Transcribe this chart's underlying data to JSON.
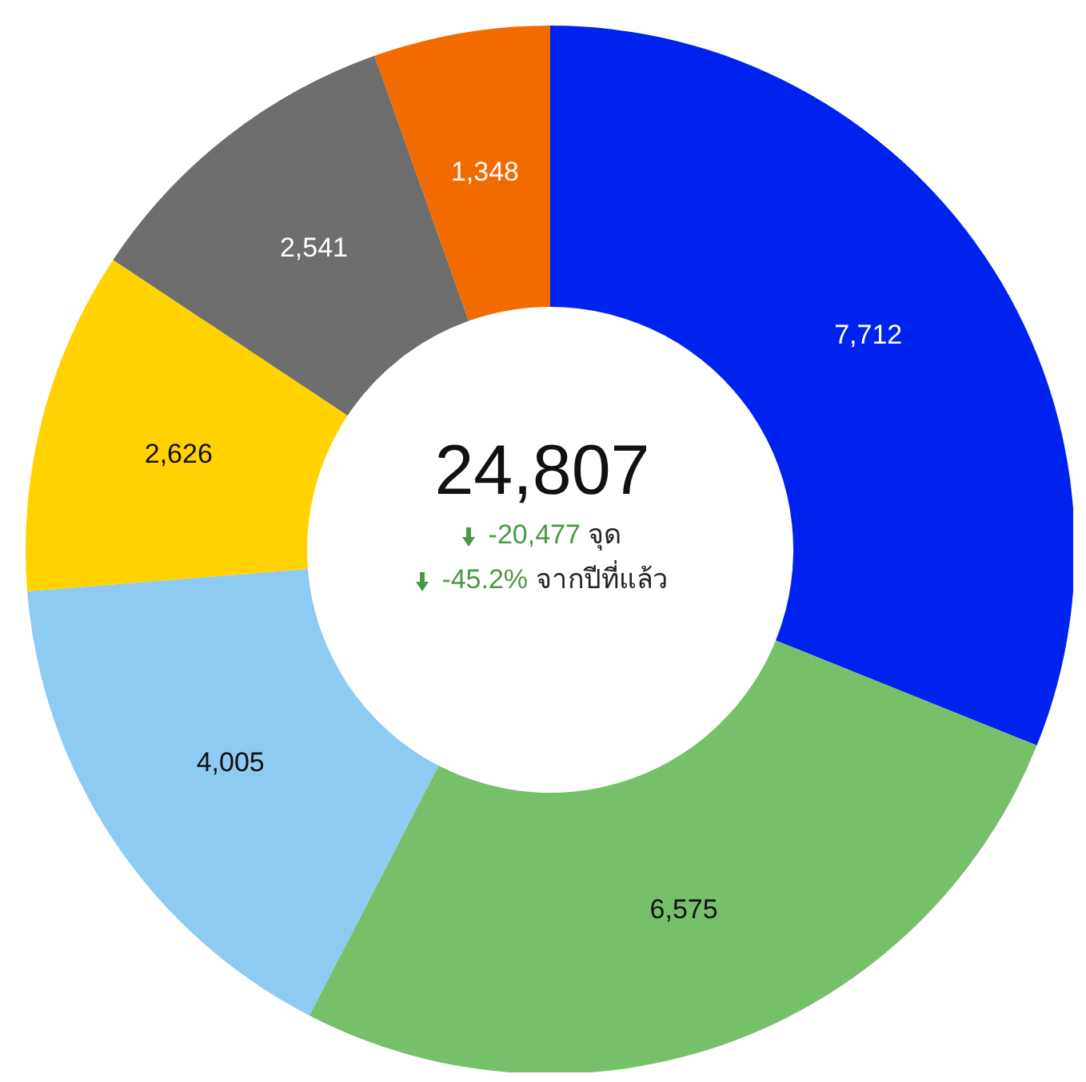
{
  "chart_data": {
    "type": "donut",
    "categories": [
      null,
      null,
      null,
      null,
      null,
      null
    ],
    "values": [
      7712,
      6575,
      4005,
      2626,
      2541,
      1348
    ],
    "colors": [
      "#0022ee",
      "#77c06a",
      "#8ecbf3",
      "#ffd200",
      "#6e6e6e",
      "#f26b00"
    ],
    "value_labels": [
      "7,712",
      "6,575",
      "4,005",
      "2,626",
      "2,541",
      "1,348"
    ],
    "legend": false,
    "annotations": [
      "24,807",
      "-20,477 จุด",
      "-45.2% จากปีที่แล้ว"
    ]
  }
}
